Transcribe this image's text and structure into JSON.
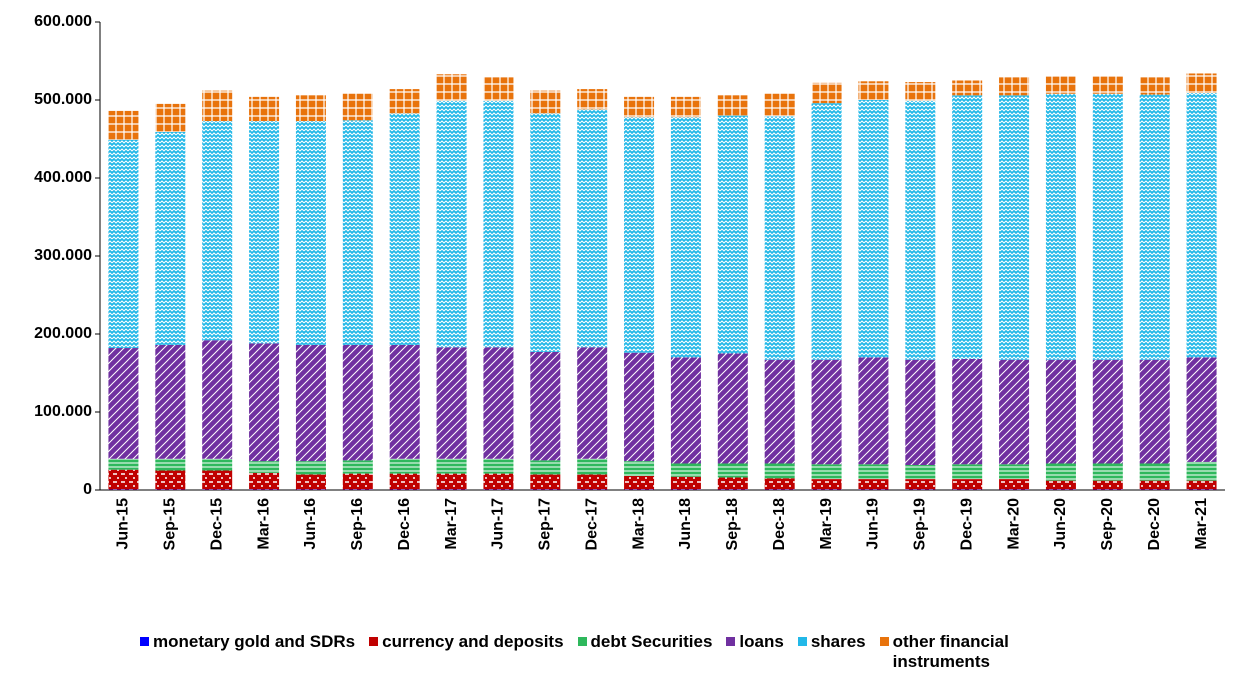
{
  "chart_data": {
    "type": "bar",
    "stacked": true,
    "categories": [
      "Jun-15",
      "Sep-15",
      "Dec-15",
      "Mar-16",
      "Jun-16",
      "Sep-16",
      "Dec-16",
      "Mar-17",
      "Jun-17",
      "Sep-17",
      "Dec-17",
      "Mar-18",
      "Jun-18",
      "Sep-18",
      "Dec-18",
      "Mar-19",
      "Jun-19",
      "Sep-19",
      "Dec-19",
      "Mar-20",
      "Jun-20",
      "Sep-20",
      "Dec-20",
      "Mar-21"
    ],
    "series": [
      {
        "name": "monetary gold and SDRs",
        "color": "#0000ff",
        "values": [
          500,
          500,
          500,
          500,
          500,
          500,
          500,
          500,
          500,
          500,
          500,
          500,
          500,
          500,
          500,
          500,
          500,
          500,
          500,
          500,
          500,
          500,
          500,
          500
        ]
      },
      {
        "name": "currency and deposits",
        "color": "#c00000",
        "values": [
          25500,
          24500,
          24500,
          21500,
          19500,
          20500,
          20500,
          20500,
          20500,
          19500,
          19500,
          17500,
          16500,
          15500,
          14500,
          13500,
          13500,
          13500,
          13500,
          13500,
          11500,
          11500,
          11500,
          11500
        ]
      },
      {
        "name": "debt Securities",
        "color": "#2eb85c",
        "values": [
          14000,
          15000,
          15000,
          15000,
          17000,
          17000,
          19000,
          19000,
          19000,
          18000,
          20000,
          19000,
          17000,
          18000,
          19000,
          19000,
          19000,
          18000,
          19000,
          19000,
          22000,
          22000,
          22000,
          24000
        ]
      },
      {
        "name": "loans",
        "color": "#7030a0",
        "values": [
          142000,
          146000,
          152000,
          151000,
          149000,
          148000,
          146000,
          143000,
          143000,
          139000,
          143000,
          139000,
          136000,
          141000,
          133000,
          134000,
          137000,
          135000,
          135000,
          134000,
          133000,
          133000,
          133000,
          134000
        ]
      },
      {
        "name": "shares",
        "color": "#22b8e8",
        "values": [
          267000,
          273000,
          281000,
          285000,
          287000,
          288000,
          297000,
          316000,
          316000,
          306000,
          305000,
          302000,
          308000,
          305000,
          312000,
          329000,
          330000,
          332000,
          338000,
          339000,
          341000,
          341000,
          340000,
          339000
        ]
      },
      {
        "name": "other financial instruments",
        "color": "#e8730c",
        "values": [
          37000,
          36000,
          39000,
          31000,
          33000,
          34000,
          31000,
          34000,
          30000,
          29000,
          26000,
          26000,
          26000,
          26000,
          29000,
          26000,
          24000,
          24000,
          19000,
          23000,
          23000,
          23000,
          22000,
          25000
        ]
      }
    ],
    "ylim": [
      0,
      600000
    ],
    "yticks": [
      0,
      {
        "value": 100000,
        "label": "100.000"
      },
      {
        "value": 200000,
        "label": "200.000"
      },
      {
        "value": 300000,
        "label": "300.000"
      },
      {
        "value": 400000,
        "label": "400.000"
      },
      {
        "value": 500000,
        "label": "500.000"
      },
      {
        "value": 600000,
        "label": "600.000"
      }
    ],
    "legend": "bottom"
  }
}
